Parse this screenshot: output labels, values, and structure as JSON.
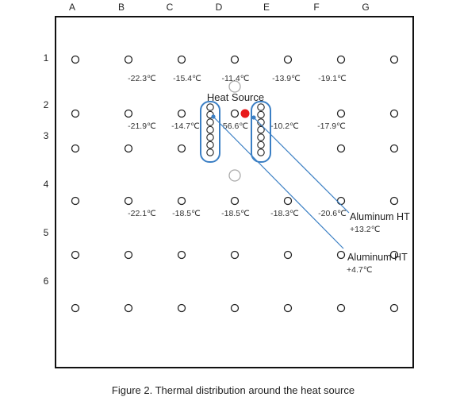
{
  "column_labels": [
    "A",
    "B",
    "C",
    "D",
    "E",
    "F",
    "G"
  ],
  "row_labels": [
    "1",
    "2",
    "3",
    "4",
    "5",
    "6"
  ],
  "temperatures_row1": [
    "-22.3℃",
    "-15.4℃",
    "-11.4℃",
    "-13.9℃",
    "-19.1℃"
  ],
  "temperatures_row2": [
    "-21.9℃",
    "-14.7℃",
    "56.6℃",
    "-10.2℃",
    "-17.9℃"
  ],
  "temperatures_row3": [
    "-22.1℃",
    "-18.5℃",
    "-18.5℃",
    "-18.3℃",
    "-20.6℃"
  ],
  "heat_source_label": "Heat Source",
  "heat_source_color": "#e8191a",
  "heat_tube_color": "#3b7fc4",
  "aluminum_ht": [
    {
      "label": "Aluminum HT",
      "value": "+13.2℃"
    },
    {
      "label": "Aluminum HT",
      "value": "+4.7℃"
    }
  ],
  "caption": "Figure 2. Thermal distribution around the heat source"
}
